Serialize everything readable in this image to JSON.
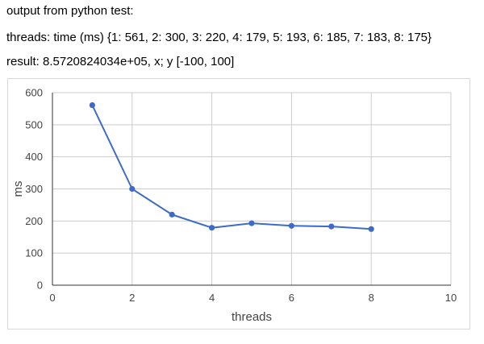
{
  "header": {
    "line1": "output from python test:",
    "line2": "threads: time (ms) {1: 561, 2: 300, 3: 220, 4: 179, 5: 193, 6: 185, 7: 183, 8: 175}",
    "line3": "result: 8.5720824034e+05, x; y [-100, 100]"
  },
  "colors": {
    "series": "#3d6cc8",
    "grid": "#cccccc",
    "axis": "#333333",
    "frame_border": "#d9d9d9"
  },
  "chart_data": {
    "type": "line",
    "title": "",
    "xlabel": "threads",
    "ylabel": "ms",
    "xlim": [
      0,
      10
    ],
    "ylim": [
      0,
      600
    ],
    "xticks": [
      0,
      2,
      4,
      6,
      8,
      10
    ],
    "yticks": [
      0,
      100,
      200,
      300,
      400,
      500,
      600
    ],
    "grid": true,
    "legend": "none",
    "markers": true,
    "series": [
      {
        "x": [
          1,
          2,
          3,
          4,
          5,
          6,
          7,
          8
        ],
        "y": [
          561,
          300,
          220,
          179,
          193,
          185,
          183,
          175
        ]
      }
    ]
  }
}
